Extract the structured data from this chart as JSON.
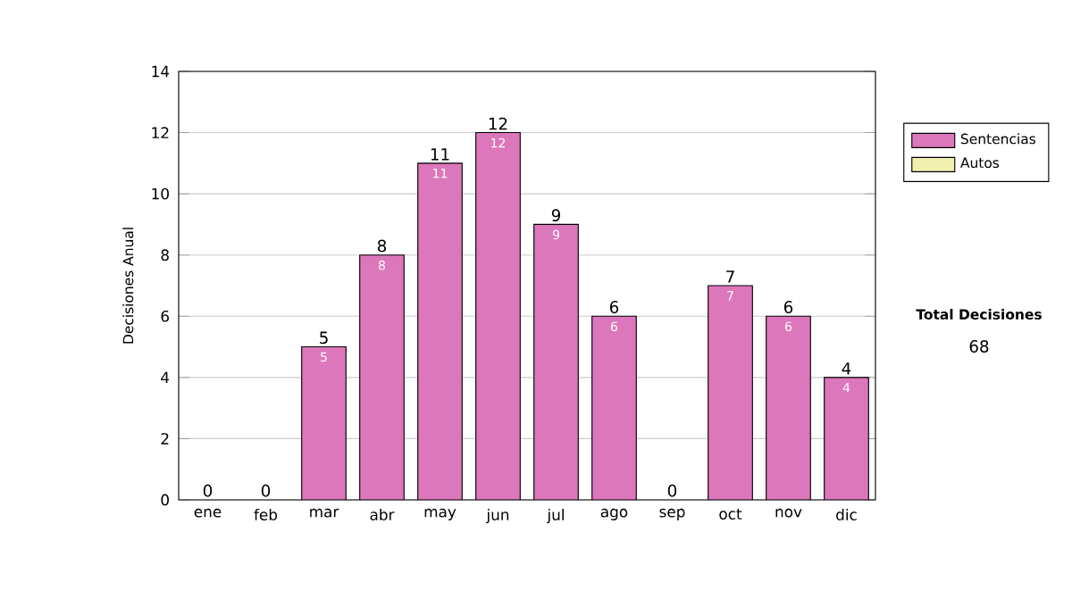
{
  "chart_data": {
    "type": "bar",
    "stacked": true,
    "ylabel": "Decisiones Anual",
    "categories": [
      "ene",
      "feb",
      "mar",
      "abr",
      "may",
      "jun",
      "jul",
      "ago",
      "sep",
      "oct",
      "nov",
      "dic"
    ],
    "series": [
      {
        "name": "Sentencias",
        "color": "#dd77bb",
        "values": [
          0,
          0,
          5,
          8,
          11,
          12,
          9,
          6,
          0,
          7,
          6,
          4
        ],
        "value_labels": [
          null,
          null,
          "5",
          "8",
          "11",
          "12",
          "9",
          "6",
          null,
          "7",
          "6",
          "4"
        ]
      },
      {
        "name": "Autos",
        "color": "#f0f0b0",
        "values": [
          0,
          0,
          0,
          0,
          0,
          0,
          0,
          0,
          0,
          0,
          0,
          0
        ]
      }
    ],
    "totals": [
      "0",
      "0",
      "5",
      "8",
      "11",
      "12",
      "9",
      "6",
      "0",
      "7",
      "6",
      "4"
    ],
    "ylim": [
      0,
      14
    ],
    "yticks": [
      0,
      2,
      4,
      6,
      8,
      10,
      12,
      14
    ],
    "grid": "y",
    "legend": "right",
    "annotations": [
      "Total Decisiones",
      "68"
    ]
  }
}
